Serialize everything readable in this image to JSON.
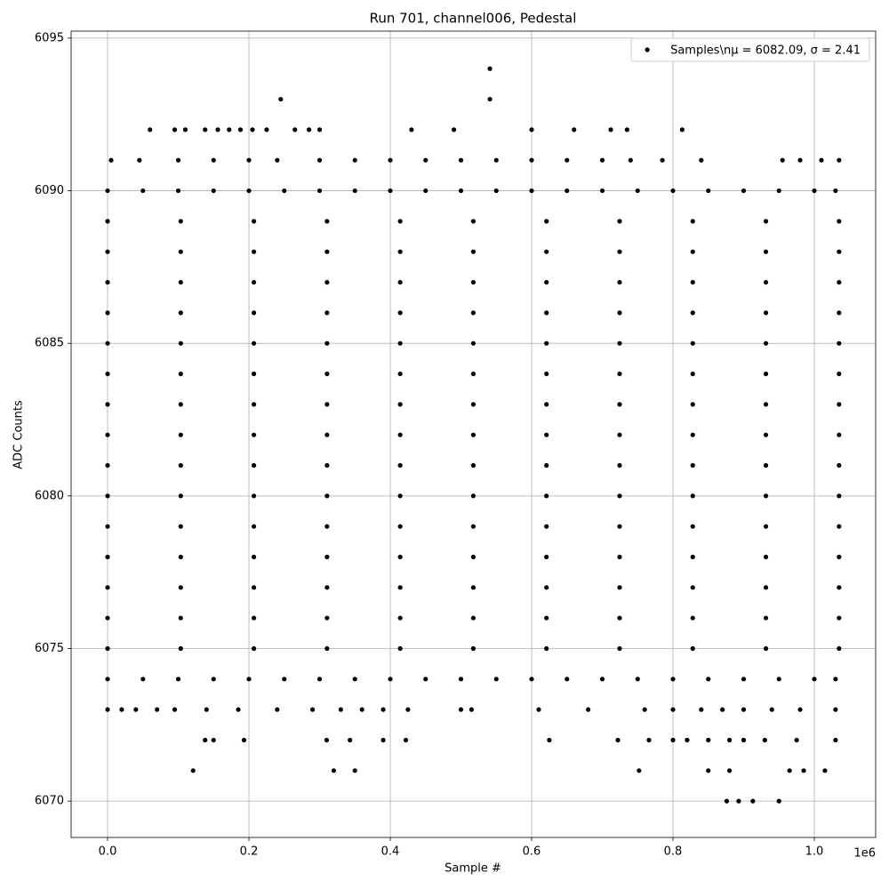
{
  "chart_data": {
    "type": "scatter",
    "title": "Run 701, channel006, Pedestal",
    "x_label": "Sample #",
    "y_label": "ADC Counts",
    "x_offset_label": "1e6",
    "xlim": [
      -51600,
      1086800
    ],
    "ylim": [
      6068.81,
      6095.23
    ],
    "xticks": [
      {
        "value": 0,
        "label": "0.0"
      },
      {
        "value": 200000,
        "label": "0.2"
      },
      {
        "value": 400000,
        "label": "0.4"
      },
      {
        "value": 600000,
        "label": "0.6"
      },
      {
        "value": 800000,
        "label": "0.8"
      },
      {
        "value": 1000000,
        "label": "1.0"
      }
    ],
    "yticks": [
      6070,
      6075,
      6080,
      6085,
      6090,
      6095
    ],
    "grid": true,
    "legend": "upper right",
    "x": [
      541000,
      245000,
      541000,
      60000,
      95000,
      110000,
      138000,
      156000,
      172000,
      188000,
      205000,
      225000,
      265000,
      285000,
      300000,
      430000,
      490000,
      600000,
      660000,
      712000,
      735000,
      813000,
      5000,
      45000,
      100000,
      150000,
      200000,
      240000,
      300000,
      350000,
      400000,
      450000,
      500000,
      550000,
      600000,
      650000,
      700000,
      740000,
      785000,
      840000,
      955000,
      980000,
      1010000,
      1035000,
      0,
      50000,
      100000,
      150000,
      200000,
      250000,
      300000,
      350000,
      400000,
      450000,
      500000,
      550000,
      600000,
      650000,
      700000,
      750000,
      800000,
      850000,
      900000,
      950000,
      1000000,
      1030000,
      0,
      103500,
      207000,
      310500,
      414000,
      517500,
      621000,
      724500,
      828000,
      931500,
      1035000,
      0,
      103500,
      207000,
      310500,
      414000,
      517500,
      621000,
      724500,
      828000,
      931500,
      1035000,
      0,
      103500,
      207000,
      310500,
      414000,
      517500,
      621000,
      724500,
      828000,
      931500,
      1035000,
      0,
      103500,
      207000,
      310500,
      414000,
      517500,
      621000,
      724500,
      828000,
      931500,
      1035000,
      0,
      103500,
      207000,
      310500,
      414000,
      517500,
      621000,
      724500,
      828000,
      931500,
      1035000,
      0,
      103500,
      207000,
      310500,
      414000,
      517500,
      621000,
      724500,
      828000,
      931500,
      1035000,
      0,
      103500,
      207000,
      310500,
      414000,
      517500,
      621000,
      724500,
      828000,
      931500,
      1035000,
      0,
      103500,
      207000,
      310500,
      414000,
      517500,
      621000,
      724500,
      828000,
      931500,
      1035000,
      0,
      103500,
      207000,
      310500,
      414000,
      517500,
      621000,
      724500,
      828000,
      931500,
      1035000,
      0,
      103500,
      207000,
      310500,
      414000,
      517500,
      621000,
      724500,
      828000,
      931500,
      1035000,
      0,
      103500,
      207000,
      310500,
      414000,
      517500,
      621000,
      724500,
      828000,
      931500,
      1035000,
      0,
      103500,
      207000,
      310500,
      414000,
      517500,
      621000,
      724500,
      828000,
      931500,
      1035000,
      0,
      103500,
      207000,
      310500,
      414000,
      517500,
      621000,
      724500,
      828000,
      931500,
      1035000,
      0,
      103500,
      207000,
      310500,
      414000,
      517500,
      621000,
      724500,
      828000,
      931500,
      1035000,
      0,
      103500,
      207000,
      310500,
      414000,
      517500,
      621000,
      724500,
      828000,
      931500,
      1035000,
      0,
      50000,
      100000,
      150000,
      200000,
      250000,
      300000,
      350000,
      400000,
      450000,
      500000,
      550000,
      600000,
      650000,
      700000,
      750000,
      800000,
      850000,
      900000,
      950000,
      1000000,
      1030000,
      0,
      20000,
      40000,
      70000,
      95000,
      140000,
      185000,
      240000,
      290000,
      330000,
      360000,
      390000,
      425000,
      500000,
      515000,
      610000,
      680000,
      760000,
      800000,
      840000,
      870000,
      900000,
      940000,
      980000,
      1030000,
      138000,
      150000,
      193000,
      310000,
      343000,
      390000,
      422000,
      625000,
      722000,
      766000,
      800000,
      820000,
      850000,
      880000,
      900000,
      930000,
      975000,
      1030000,
      121000,
      320000,
      350000,
      752000,
      850000,
      880000,
      965000,
      985000,
      1015000,
      876000,
      893000,
      913000,
      950000
    ],
    "series": [
      {
        "name": "Samples\\nμ = 6082.09, σ = 2.41",
        "color": "#000000",
        "values": [
          6094,
          6093,
          6093,
          6092,
          6092,
          6092,
          6092,
          6092,
          6092,
          6092,
          6092,
          6092,
          6092,
          6092,
          6092,
          6092,
          6092,
          6092,
          6092,
          6092,
          6092,
          6092,
          6091,
          6091,
          6091,
          6091,
          6091,
          6091,
          6091,
          6091,
          6091,
          6091,
          6091,
          6091,
          6091,
          6091,
          6091,
          6091,
          6091,
          6091,
          6091,
          6091,
          6091,
          6091,
          6090,
          6090,
          6090,
          6090,
          6090,
          6090,
          6090,
          6090,
          6090,
          6090,
          6090,
          6090,
          6090,
          6090,
          6090,
          6090,
          6090,
          6090,
          6090,
          6090,
          6090,
          6090,
          6089,
          6089,
          6089,
          6089,
          6089,
          6089,
          6089,
          6089,
          6089,
          6089,
          6089,
          6088,
          6088,
          6088,
          6088,
          6088,
          6088,
          6088,
          6088,
          6088,
          6088,
          6088,
          6087,
          6087,
          6087,
          6087,
          6087,
          6087,
          6087,
          6087,
          6087,
          6087,
          6087,
          6086,
          6086,
          6086,
          6086,
          6086,
          6086,
          6086,
          6086,
          6086,
          6086,
          6086,
          6085,
          6085,
          6085,
          6085,
          6085,
          6085,
          6085,
          6085,
          6085,
          6085,
          6085,
          6084,
          6084,
          6084,
          6084,
          6084,
          6084,
          6084,
          6084,
          6084,
          6084,
          6084,
          6083,
          6083,
          6083,
          6083,
          6083,
          6083,
          6083,
          6083,
          6083,
          6083,
          6083,
          6082,
          6082,
          6082,
          6082,
          6082,
          6082,
          6082,
          6082,
          6082,
          6082,
          6082,
          6081,
          6081,
          6081,
          6081,
          6081,
          6081,
          6081,
          6081,
          6081,
          6081,
          6081,
          6080,
          6080,
          6080,
          6080,
          6080,
          6080,
          6080,
          6080,
          6080,
          6080,
          6080,
          6079,
          6079,
          6079,
          6079,
          6079,
          6079,
          6079,
          6079,
          6079,
          6079,
          6079,
          6078,
          6078,
          6078,
          6078,
          6078,
          6078,
          6078,
          6078,
          6078,
          6078,
          6078,
          6077,
          6077,
          6077,
          6077,
          6077,
          6077,
          6077,
          6077,
          6077,
          6077,
          6077,
          6076,
          6076,
          6076,
          6076,
          6076,
          6076,
          6076,
          6076,
          6076,
          6076,
          6076,
          6075,
          6075,
          6075,
          6075,
          6075,
          6075,
          6075,
          6075,
          6075,
          6075,
          6075,
          6074,
          6074,
          6074,
          6074,
          6074,
          6074,
          6074,
          6074,
          6074,
          6074,
          6074,
          6074,
          6074,
          6074,
          6074,
          6074,
          6074,
          6074,
          6074,
          6074,
          6074,
          6074,
          6073,
          6073,
          6073,
          6073,
          6073,
          6073,
          6073,
          6073,
          6073,
          6073,
          6073,
          6073,
          6073,
          6073,
          6073,
          6073,
          6073,
          6073,
          6073,
          6073,
          6073,
          6073,
          6073,
          6073,
          6073,
          6072,
          6072,
          6072,
          6072,
          6072,
          6072,
          6072,
          6072,
          6072,
          6072,
          6072,
          6072,
          6072,
          6072,
          6072,
          6072,
          6072,
          6072,
          6071,
          6071,
          6071,
          6071,
          6071,
          6071,
          6071,
          6071,
          6071,
          6070,
          6070,
          6070,
          6070
        ]
      }
    ]
  }
}
